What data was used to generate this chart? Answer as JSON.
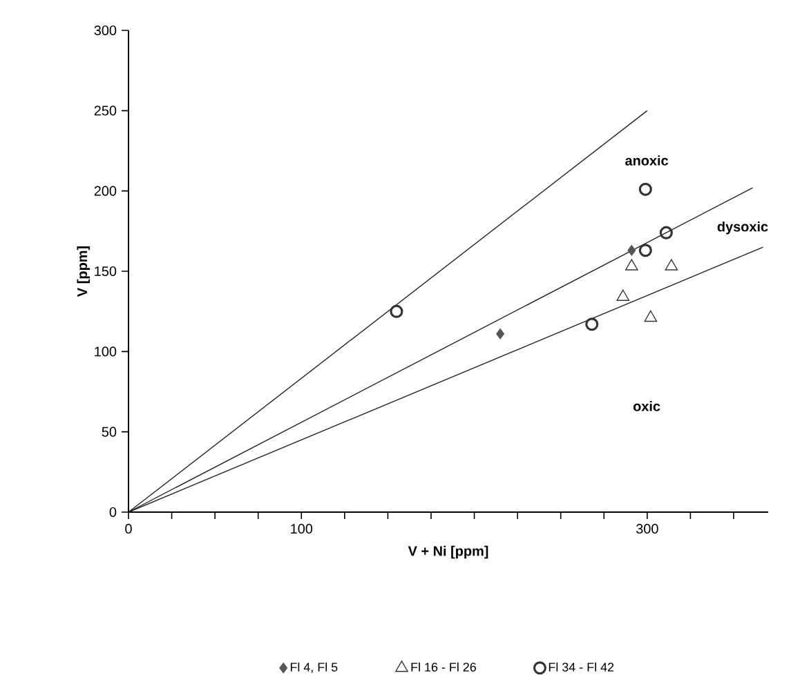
{
  "chart_data": {
    "type": "scatter",
    "xlabel": "V + Ni [ppm]",
    "ylabel": "V [ppm]",
    "xlim": [
      0,
      370
    ],
    "ylim": [
      0,
      300
    ],
    "xticks": [
      0,
      {
        "value": 25,
        "label": null
      },
      {
        "value": 50,
        "label": null
      },
      {
        "value": 75,
        "label": null
      },
      100,
      {
        "value": 125,
        "label": null
      },
      {
        "value": 150,
        "label": null
      },
      {
        "value": 175,
        "label": null
      },
      {
        "value": 200,
        "label": null
      },
      {
        "value": 225,
        "label": null
      },
      {
        "value": 250,
        "label": null
      },
      {
        "value": 275,
        "label": null
      },
      300,
      {
        "value": 325,
        "label": null
      },
      {
        "value": 350,
        "label": null
      }
    ],
    "yticks": [
      0,
      50,
      100,
      150,
      200,
      250,
      300
    ],
    "grid": false,
    "legend": "bottom",
    "series": [
      {
        "name": "Fl 4, Fl 5",
        "color": "#555555",
        "marker": "diamond",
        "x": [
          215,
          291
        ],
        "values": [
          111,
          163
        ]
      },
      {
        "name": "Fl 16 - Fl 26",
        "color": "#333333",
        "marker": "triangle",
        "x": [
          291,
          314,
          286,
          302
        ],
        "values": [
          153,
          153,
          134,
          121
        ]
      },
      {
        "name": "Fl 34 - Fl 42",
        "color": "#333333",
        "marker": "circle",
        "x": [
          155,
          299,
          311,
          299,
          268
        ],
        "values": [
          125,
          201,
          174,
          163,
          117
        ]
      },
      {
        "type": "line",
        "color": "#222222",
        "marker": "none",
        "x": [
          0,
          300
        ],
        "values": [
          0,
          250
        ]
      },
      {
        "type": "line",
        "color": "#222222",
        "marker": "none",
        "x": [
          0,
          361
        ],
        "values": [
          0,
          202
        ]
      },
      {
        "type": "line",
        "color": "#222222",
        "marker": "none",
        "x": [
          0,
          367
        ],
        "values": [
          0,
          165
        ]
      }
    ],
    "annotations": [
      "anoxic",
      "dysoxic",
      "oxic"
    ]
  }
}
